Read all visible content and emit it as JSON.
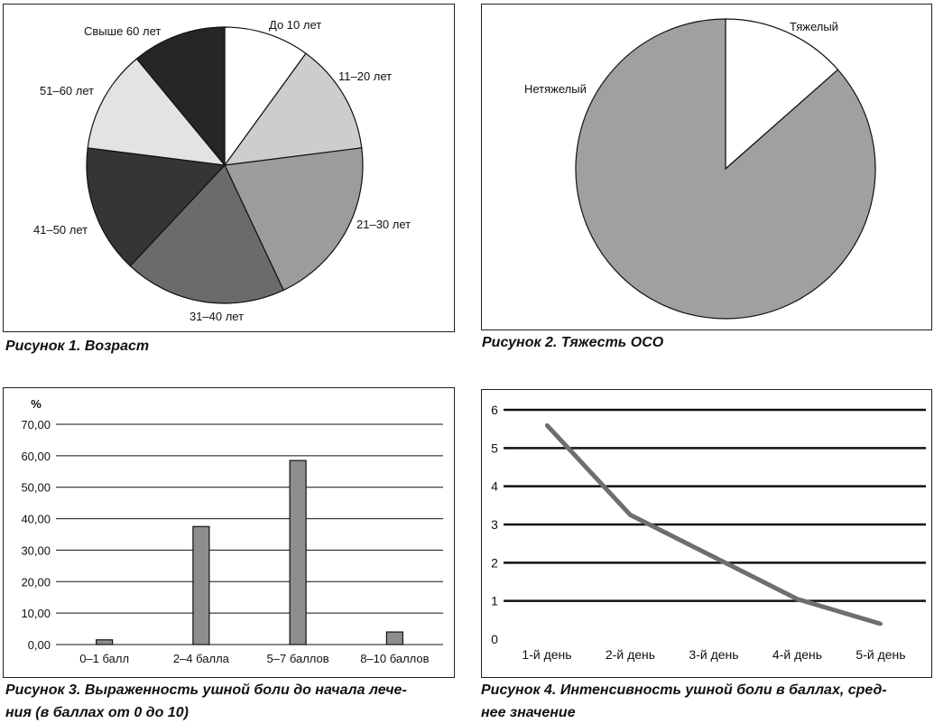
{
  "colors": {
    "white": "#ffffff",
    "light": "#e3e3e3",
    "pale": "#cdcdcd",
    "mid": "#9c9c9c",
    "midDark": "#6b6b6b",
    "dark": "#353535",
    "darkest": "#262626",
    "severity": "#a0a0a0",
    "bar": "#8e8e8e",
    "line": "#6e6e6e",
    "grid": "#111111"
  },
  "captions": {
    "fig1": "Рисунок 1. Возраст",
    "fig2": "Рисунок 2. Тяжесть ОСО",
    "fig3_line1": "Рисунок 3. Выраженность ушной боли до начала лече-",
    "fig3_line2": "ния (в баллах от 0 до 10)",
    "fig4_line1": "Рисунок 4. Интенсивность ушной боли в баллах, сред-",
    "fig4_line2": "нее значение"
  },
  "chart_data": [
    {
      "type": "pie",
      "title": "Рисунок 1. Возраст",
      "labels": [
        "До 10 лет",
        "11–20 лет",
        "21–30 лет",
        "31–40 лет",
        "41–50 лет",
        "51–60 лет",
        "Свыше 60 лет"
      ],
      "values": [
        10,
        13,
        20,
        19,
        15,
        12,
        11
      ],
      "colors": [
        "#ffffff",
        "#cdcdcd",
        "#9c9c9c",
        "#6b6b6b",
        "#353535",
        "#e3e3e3",
        "#262626"
      ]
    },
    {
      "type": "pie",
      "title": "Рисунок 2. Тяжесть ОСО",
      "labels": [
        "Тяжелый",
        "Нетяжелый"
      ],
      "values": [
        13.5,
        86.5
      ],
      "colors": [
        "#ffffff",
        "#a0a0a0"
      ]
    },
    {
      "type": "bar",
      "title": "Рисунок 3. Выраженность ушной боли до начала лечения (в баллах от 0 до 10)",
      "ylabel": "%",
      "categories": [
        "0–1 балл",
        "2–4 балла",
        "5–7 баллов",
        "8–10 баллов"
      ],
      "values": [
        1.5,
        37.5,
        58.5,
        4.0
      ],
      "ylim": [
        0,
        70
      ],
      "yticks": [
        "0,00",
        "10,00",
        "20,00",
        "30,00",
        "40,00",
        "50,00",
        "60,00",
        "70,00"
      ],
      "grid": true
    },
    {
      "type": "line",
      "title": "Рисунок 4. Интенсивность ушной боли в баллах, среднее значение",
      "categories": [
        "1-й день",
        "2-й день",
        "3-й день",
        "4-й день",
        "5-й день"
      ],
      "values": [
        5.6,
        3.25,
        2.15,
        1.05,
        0.4
      ],
      "ylim": [
        0,
        6
      ],
      "yticks": [
        "0",
        "1",
        "2",
        "3",
        "4",
        "5",
        "6"
      ],
      "grid": true
    }
  ]
}
